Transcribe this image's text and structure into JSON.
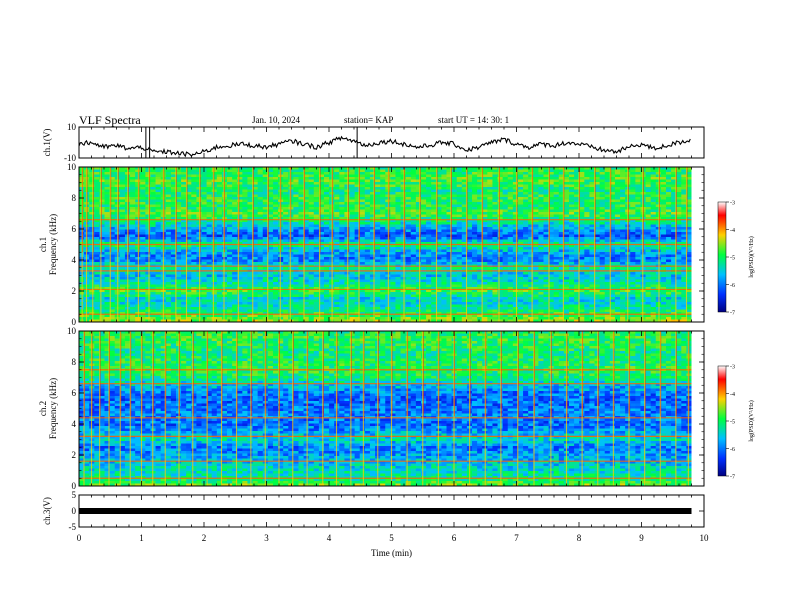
{
  "header": {
    "title": "VLF Spectra",
    "date": "Jan. 10, 2024",
    "station": "station= KAP",
    "start_ut": "start UT =   14: 30: 1"
  },
  "chart_data": [
    {
      "type": "line",
      "panel": "ch1-waveform",
      "ylabel": "ch.1(V)",
      "ylim": [
        -10,
        10
      ],
      "yticks": [
        "10",
        "-10"
      ],
      "x_range_min": [
        0,
        10
      ],
      "data_end_min": 9.8,
      "series": [
        {
          "x": [
            0,
            0.2,
            0.4,
            0.6,
            0.8,
            1.0,
            1.2,
            1.4,
            1.6,
            1.8,
            2.0,
            2.2,
            2.4,
            2.6,
            2.8,
            3.0,
            3.2,
            3.4,
            3.6,
            3.8,
            4.0,
            4.2,
            4.4,
            4.6,
            4.8,
            5.0,
            5.2,
            5.4,
            5.6,
            5.8,
            6.0,
            6.2,
            6.4,
            6.6,
            6.8,
            7.0,
            7.2,
            7.4,
            7.6,
            7.8,
            8.0,
            8.2,
            8.4,
            8.6,
            8.8,
            9.0,
            9.2,
            9.4,
            9.6,
            9.8
          ],
          "values": [
            -1,
            0,
            -3,
            -2,
            -4,
            -3,
            -6,
            -6,
            -7,
            -8,
            -6,
            -3,
            -2,
            -1,
            -2,
            -3,
            -1,
            1,
            -1,
            -3,
            0,
            3,
            1,
            -2,
            0,
            1,
            -1,
            -3,
            -2,
            0,
            -1,
            -5,
            -3,
            0,
            2,
            -1,
            -3,
            -1,
            -2,
            0,
            -1,
            -3,
            -5,
            -6,
            -3,
            -1,
            -4,
            -2,
            0,
            2
          ]
        }
      ]
    },
    {
      "type": "heatmap",
      "panel": "ch1-spectrogram",
      "ylabel": "ch.1\nFrequency (kHz)",
      "ylim": [
        0,
        10
      ],
      "yticks": [
        "0",
        "2",
        "4",
        "6",
        "8",
        "10"
      ],
      "colorbar": {
        "label": "log(PSD)(V²/Hz)",
        "range": [
          -7,
          -3
        ],
        "ticks": [
          "-3",
          "-4",
          "-5",
          "-6",
          "-7"
        ]
      },
      "band_levels_freq_khz": [
        [
          0.0,
          -4.5
        ],
        [
          0.5,
          -4.9
        ],
        [
          1.0,
          -5.3
        ],
        [
          1.5,
          -5.5
        ],
        [
          2.0,
          -4.8
        ],
        [
          2.5,
          -5.3
        ],
        [
          3.0,
          -5.6
        ],
        [
          3.5,
          -5.2
        ],
        [
          4.0,
          -6.0
        ],
        [
          4.5,
          -5.8
        ],
        [
          5.0,
          -5.0
        ],
        [
          5.5,
          -6.2
        ],
        [
          6.0,
          -5.8
        ],
        [
          6.5,
          -5.2
        ],
        [
          7.0,
          -4.8
        ],
        [
          7.5,
          -5.0
        ],
        [
          8.0,
          -4.9
        ],
        [
          8.5,
          -5.1
        ],
        [
          9.0,
          -4.8
        ],
        [
          9.5,
          -4.9
        ],
        [
          10.0,
          -5.0
        ]
      ],
      "lines_khz": [
        0.5,
        2.1,
        3.3,
        3.6,
        5.0,
        6.6
      ],
      "impulses_min": [
        0.05,
        0.12,
        0.22,
        0.35,
        0.5,
        0.62,
        0.78,
        0.95,
        1.12,
        1.35,
        1.55,
        1.72,
        1.93,
        2.15,
        2.32,
        2.55,
        2.78,
        3.02,
        3.22,
        3.38,
        3.6,
        3.85,
        4.05,
        4.3,
        4.48,
        4.72,
        4.95,
        5.2,
        5.45,
        5.72,
        5.95,
        6.2,
        6.45,
        6.72,
        7.0,
        7.25,
        7.52,
        7.75,
        8.0,
        8.25,
        8.5,
        8.78,
        9.02,
        9.28,
        9.55,
        9.72
      ]
    },
    {
      "type": "heatmap",
      "panel": "ch2-spectrogram",
      "ylabel": "ch.2\nFrequency (kHz)",
      "ylim": [
        0,
        10
      ],
      "yticks": [
        "0",
        "2",
        "4",
        "6",
        "8",
        "10"
      ],
      "colorbar": {
        "label": "log(PSD)(V²/Hz)",
        "range": [
          -7,
          -3
        ],
        "ticks": [
          "-3",
          "-4",
          "-5",
          "-6",
          "-7"
        ]
      },
      "band_levels_freq_khz": [
        [
          0.0,
          -4.6
        ],
        [
          0.5,
          -5.2
        ],
        [
          1.0,
          -5.4
        ],
        [
          1.5,
          -5.6
        ],
        [
          2.0,
          -5.8
        ],
        [
          2.5,
          -6.0
        ],
        [
          3.0,
          -5.4
        ],
        [
          3.5,
          -5.8
        ],
        [
          4.0,
          -6.1
        ],
        [
          4.5,
          -5.9
        ],
        [
          5.0,
          -6.0
        ],
        [
          5.5,
          -6.1
        ],
        [
          6.0,
          -6.0
        ],
        [
          6.5,
          -5.6
        ],
        [
          7.0,
          -5.1
        ],
        [
          7.5,
          -4.9
        ],
        [
          8.0,
          -5.0
        ],
        [
          8.5,
          -5.1
        ],
        [
          9.0,
          -5.0
        ],
        [
          9.5,
          -4.9
        ],
        [
          10.0,
          -5.0
        ]
      ],
      "lines_khz": [
        0.5,
        1.6,
        3.2,
        4.4,
        6.6,
        7.5
      ],
      "impulses_min": [
        0.08,
        0.2,
        0.33,
        0.48,
        0.66,
        0.82,
        1.0,
        1.18,
        1.38,
        1.6,
        1.82,
        2.05,
        2.28,
        2.52,
        2.75,
        2.98,
        3.2,
        3.42,
        3.65,
        3.9,
        4.12,
        4.35,
        4.55,
        4.78,
        5.0,
        5.25,
        5.5,
        5.75,
        6.0,
        6.25,
        6.5,
        6.75,
        7.02,
        7.28,
        7.55,
        7.8,
        8.05,
        8.3,
        8.55,
        8.8,
        9.05,
        9.3,
        9.55,
        9.75
      ]
    },
    {
      "type": "line",
      "panel": "ch3-waveform",
      "ylabel": "ch.3(V)",
      "ylim": [
        -5,
        5
      ],
      "yticks": [
        "5",
        "0",
        "-5"
      ],
      "series": [
        {
          "x": [
            0,
            9.8
          ],
          "values": [
            0,
            0
          ]
        }
      ],
      "xlabel": "Time (min)",
      "xlim": [
        0,
        10
      ],
      "xticks": [
        "0",
        "1",
        "2",
        "3",
        "4",
        "5",
        "6",
        "7",
        "8",
        "9",
        "10"
      ]
    }
  ]
}
